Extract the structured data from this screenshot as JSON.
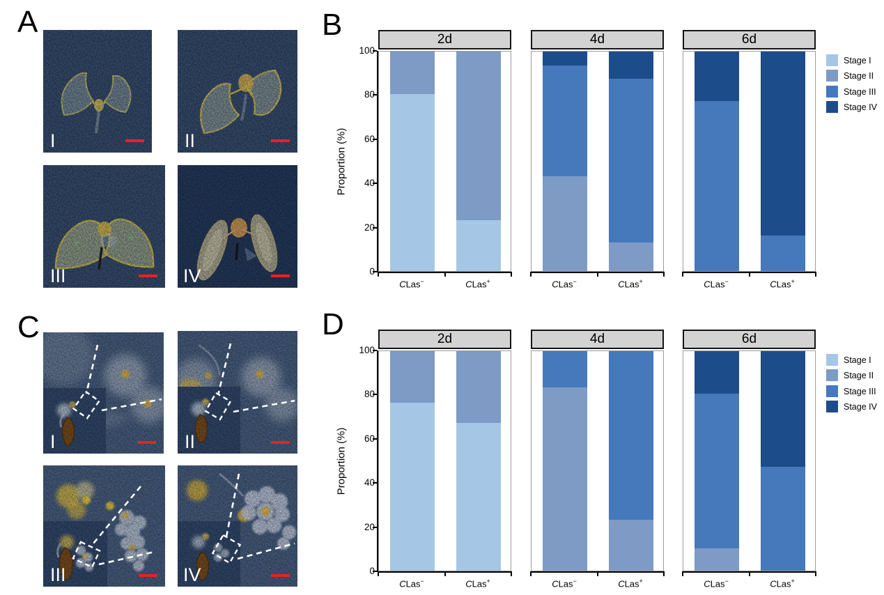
{
  "figure": {
    "scale_bar_color": "#e8231d",
    "strip_bg": "#d3d3d3",
    "panels": {
      "A": {
        "label": "A",
        "images": [
          {
            "stage": "I"
          },
          {
            "stage": "II"
          },
          {
            "stage": "III"
          },
          {
            "stage": "IV"
          }
        ]
      },
      "B": {
        "label": "B"
      },
      "C": {
        "label": "C",
        "images": [
          {
            "stage": "I"
          },
          {
            "stage": "II"
          },
          {
            "stage": "III"
          },
          {
            "stage": "IV"
          }
        ]
      },
      "D": {
        "label": "D"
      }
    }
  },
  "chart_data": [
    {
      "panel": "B",
      "type": "bar",
      "stacked": true,
      "orientation": "vertical",
      "ylabel": "Proportion (%)",
      "ylim": [
        0,
        100
      ],
      "yticks": [
        0,
        20,
        40,
        60,
        80,
        100
      ],
      "grid": false,
      "legend_position": "right",
      "stages": [
        {
          "name": "Stage I",
          "color": "#a6c6e5"
        },
        {
          "name": "Stage II",
          "color": "#7d9bc5"
        },
        {
          "name": "Stage III",
          "color": "#4678bc"
        },
        {
          "name": "Stage IV",
          "color": "#1d4c8a"
        }
      ],
      "facets": [
        {
          "title": "2d",
          "bars": [
            {
              "group": {
                "italic": "C",
                "text": "Las",
                "sup": "−"
              },
              "values": [
                80,
                20,
                0,
                0
              ]
            },
            {
              "group": {
                "italic": "C",
                "text": "Las",
                "sup": "+"
              },
              "values": [
                23,
                77,
                0,
                0
              ]
            }
          ]
        },
        {
          "title": "4d",
          "bars": [
            {
              "group": {
                "italic": "C",
                "text": "Las",
                "sup": "−"
              },
              "values": [
                0,
                43,
                50,
                7
              ]
            },
            {
              "group": {
                "italic": "C",
                "text": "Las",
                "sup": "+"
              },
              "values": [
                0,
                13,
                74,
                13
              ]
            }
          ]
        },
        {
          "title": "6d",
          "bars": [
            {
              "group": {
                "italic": "C",
                "text": "Las",
                "sup": "−"
              },
              "values": [
                0,
                0,
                77,
                23
              ]
            },
            {
              "group": {
                "italic": "C",
                "text": "Las",
                "sup": "+"
              },
              "values": [
                0,
                0,
                16,
                84
              ]
            }
          ]
        }
      ]
    },
    {
      "panel": "D",
      "type": "bar",
      "stacked": true,
      "orientation": "vertical",
      "ylabel": "Proportion (%)",
      "ylim": [
        0,
        100
      ],
      "yticks": [
        0,
        20,
        40,
        60,
        80,
        100
      ],
      "grid": false,
      "legend_position": "right",
      "stages": [
        {
          "name": "Stage I",
          "color": "#a6c6e5"
        },
        {
          "name": "Stage II",
          "color": "#7d9bc5"
        },
        {
          "name": "Stage III",
          "color": "#4678bc"
        },
        {
          "name": "Stage IV",
          "color": "#1d4c8a"
        }
      ],
      "facets": [
        {
          "title": "2d",
          "bars": [
            {
              "group": {
                "italic": "C",
                "text": "Las",
                "sup": "−"
              },
              "values": [
                76,
                24,
                0,
                0
              ]
            },
            {
              "group": {
                "italic": "C",
                "text": "Las",
                "sup": "+"
              },
              "values": [
                67,
                33,
                0,
                0
              ]
            }
          ]
        },
        {
          "title": "4d",
          "bars": [
            {
              "group": {
                "italic": "C",
                "text": "Las",
                "sup": "−"
              },
              "values": [
                0,
                83,
                17,
                0
              ]
            },
            {
              "group": {
                "italic": "C",
                "text": "Las",
                "sup": "+"
              },
              "values": [
                0,
                23,
                77,
                0
              ]
            }
          ]
        },
        {
          "title": "6d",
          "bars": [
            {
              "group": {
                "italic": "C",
                "text": "Las",
                "sup": "−"
              },
              "values": [
                0,
                10,
                70,
                20
              ]
            },
            {
              "group": {
                "italic": "C",
                "text": "Las",
                "sup": "+"
              },
              "values": [
                0,
                0,
                47,
                53
              ]
            }
          ]
        }
      ]
    }
  ]
}
